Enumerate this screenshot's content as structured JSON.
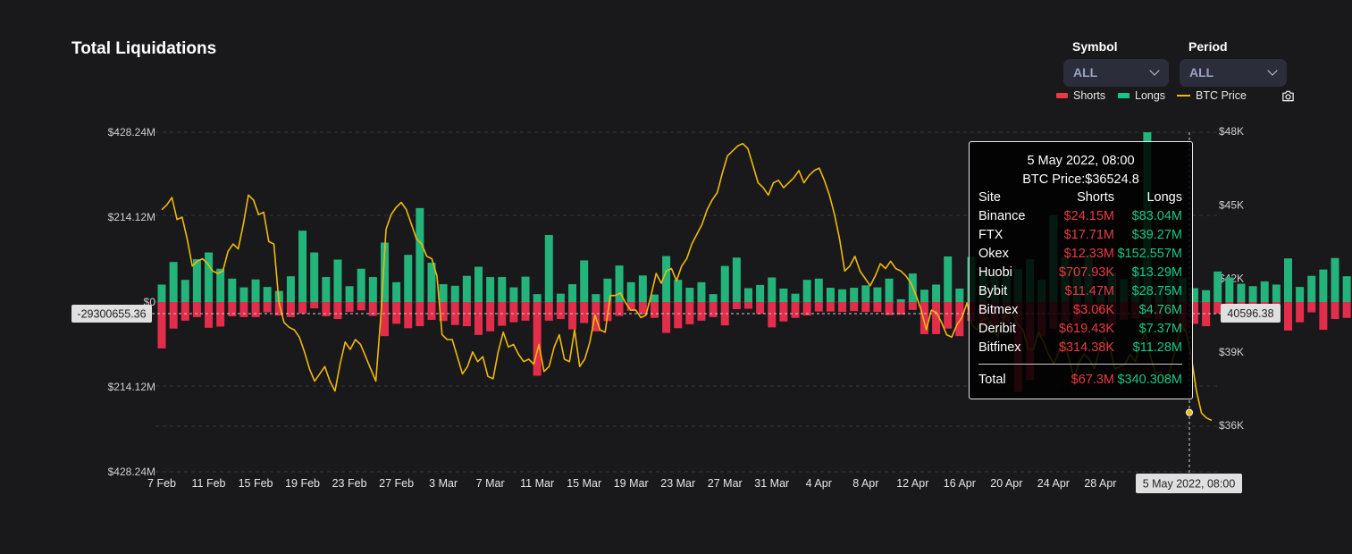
{
  "header": {
    "title": "Total Liquidations"
  },
  "controls": {
    "symbol": {
      "label": "Symbol",
      "value": "ALL"
    },
    "period": {
      "label": "Period",
      "value": "ALL"
    }
  },
  "legend": {
    "shorts": "Shorts",
    "longs": "Longs",
    "btc": "BTC Price"
  },
  "colors": {
    "shorts": "#ea3943",
    "longs": "#16c784",
    "btc": "#f0b90b",
    "background": "#19191b"
  },
  "icons": {
    "camera": "camera-icon",
    "chevron": "chevron-down-icon"
  },
  "crosshair": {
    "left_label": "-29300655.36",
    "right_label": "40596.38",
    "x_label": "5 May 2022, 08:00"
  },
  "tooltip": {
    "date": "5 May 2022, 08:00",
    "price": "BTC Price:$36524.8",
    "headers": {
      "site": "Site",
      "shorts": "Shorts",
      "longs": "Longs"
    },
    "rows": [
      {
        "site": "Binance",
        "shorts": "$24.15M",
        "longs": "$83.04M"
      },
      {
        "site": "FTX",
        "shorts": "$17.71M",
        "longs": "$39.27M"
      },
      {
        "site": "Okex",
        "shorts": "$12.33M",
        "longs": "$152.557M"
      },
      {
        "site": "Huobi",
        "shorts": "$707.93K",
        "longs": "$13.29M"
      },
      {
        "site": "Bybit",
        "shorts": "$11.47M",
        "longs": "$28.75M"
      },
      {
        "site": "Bitmex",
        "shorts": "$3.06K",
        "longs": "$4.76M"
      },
      {
        "site": "Deribit",
        "shorts": "$619.43K",
        "longs": "$7.37M"
      },
      {
        "site": "Bitfinex",
        "shorts": "$314.38K",
        "longs": "$11.28M"
      }
    ],
    "total": {
      "label": "Total",
      "shorts": "$67.3M",
      "longs": "$340.308M"
    }
  },
  "chart_data": {
    "type": "bar",
    "x_tick_labels": [
      "7 Feb",
      "11 Feb",
      "15 Feb",
      "19 Feb",
      "23 Feb",
      "27 Feb",
      "3 Mar",
      "7 Mar",
      "11 Mar",
      "15 Mar",
      "19 Mar",
      "23 Mar",
      "27 Mar",
      "31 Mar",
      "4 Apr",
      "8 Apr",
      "12 Apr",
      "16 Apr",
      "20 Apr",
      "24 Apr",
      "28 Apr"
    ],
    "y_left_ticks": [
      "$428.24M",
      "$214.12M",
      "$0",
      "$214.12M",
      "$428.24M"
    ],
    "y_left_range_millions": [
      -428.24,
      428.24
    ],
    "y_right_ticks": [
      "$48K",
      "$45K",
      "$42K",
      "$39K",
      "$36K"
    ],
    "y_right_range": [
      34200,
      48000
    ],
    "grid": "horizontal dashed",
    "legend_position": "top-right",
    "series": [
      {
        "name": "Longs",
        "unit": "M USD",
        "values": [
          44,
          101,
          56,
          108,
          125,
          84,
          59,
          37,
          57,
          38,
          28,
          65,
          180,
          125,
          63,
          107,
          40,
          84,
          63,
          150,
          50,
          119,
          237,
          99,
          45,
          41,
          66,
          89,
          63,
          63,
          37,
          64,
          20,
          169,
          21,
          45,
          105,
          20,
          59,
          92,
          50,
          67,
          19,
          116,
          56,
          36,
          50,
          20,
          91,
          112,
          35,
          43,
          62,
          34,
          21,
          56,
          59,
          36,
          32,
          36,
          42,
          37,
          59,
          7,
          72,
          31,
          44,
          115,
          34,
          114,
          82,
          69,
          71,
          83,
          108,
          56,
          219,
          115,
          79,
          118,
          21,
          76,
          57,
          89,
          440,
          40,
          85,
          61,
          35,
          30,
          77,
          62,
          46,
          40,
          52,
          44,
          110,
          38,
          66,
          82,
          111,
          65,
          140,
          129,
          47,
          222,
          145,
          141,
          107,
          76,
          75,
          95
        ],
        "_comment": "daily long liquidations in $M, read from green bars (7 Feb onward)"
      },
      {
        "name": "Shorts",
        "unit": "M USD",
        "values": [
          117,
          67,
          47,
          38,
          65,
          62,
          36,
          38,
          38,
          26,
          34,
          38,
          29,
          16,
          36,
          43,
          25,
          21,
          35,
          86,
          55,
          66,
          61,
          45,
          48,
          58,
          61,
          83,
          74,
          60,
          51,
          47,
          186,
          47,
          43,
          69,
          53,
          74,
          48,
          35,
          22,
          31,
          40,
          78,
          66,
          56,
          47,
          38,
          59,
          18,
          17,
          30,
          64,
          49,
          40,
          34,
          24,
          24,
          25,
          23,
          25,
          25,
          33,
          32,
          20,
          81,
          81,
          67,
          86,
          48,
          62,
          66,
          53,
          227,
          197,
          87,
          67,
          48,
          57,
          30,
          33,
          58,
          45,
          42,
          41,
          43,
          34,
          75,
          55,
          61,
          29,
          38,
          45,
          49,
          27,
          31,
          72,
          51,
          26,
          70,
          43,
          40,
          27,
          31,
          35,
          32,
          25,
          38,
          21,
          20,
          35,
          45
        ],
        "_comment": "daily short liquidations in $M (plotted downward), read from red bars"
      },
      {
        "name": "BTC Price",
        "unit": "USD",
        "values": [
          44800,
          45000,
          45300,
          44400,
          44500,
          43600,
          42500,
          42700,
          42800,
          42600,
          42300,
          42200,
          42300,
          43100,
          43400,
          43200,
          44200,
          45400,
          45200,
          44600,
          44700,
          43500,
          43400,
          41000,
          40200,
          40000,
          39900,
          39600,
          39000,
          38300,
          37800,
          38100,
          38400,
          37800,
          37400,
          38500,
          39400,
          39100,
          39500,
          39300,
          38800,
          38300,
          37800,
          40500,
          44000,
          44600,
          44900,
          45100,
          44800,
          44200,
          43600,
          43400,
          42900,
          42800,
          42100,
          39700,
          39500,
          39500,
          38800,
          38100,
          38400,
          39000,
          38600,
          38800,
          38000,
          37900,
          39000,
          39800,
          39200,
          39300,
          38900,
          38600,
          38700,
          38500,
          39300,
          38200,
          38400,
          39200,
          39700,
          38700,
          38600,
          39900,
          38400,
          38700,
          39400,
          40500,
          39900,
          39800,
          41300,
          41300,
          41400,
          41000,
          40700,
          40700,
          40400,
          40500,
          41300,
          42200,
          41800,
          42300,
          42400,
          41900,
          42500,
          42800,
          43400,
          43800,
          44200,
          44800,
          45200,
          45500,
          46300,
          47000,
          47200,
          47400,
          47500,
          47300,
          46600,
          45900,
          45700,
          45400,
          45900,
          46000,
          45700,
          45900,
          46100,
          46400,
          45900,
          46200,
          46400,
          46500,
          46000,
          45400,
          44600,
          43600,
          42300,
          42500,
          42900,
          42300,
          42000,
          41700,
          42100,
          42600,
          42400,
          42700,
          42400,
          42300,
          42100,
          41800,
          41300,
          40700,
          39900,
          40700,
          40600,
          40200,
          39700,
          39600,
          40100,
          40400,
          41000,
          40100,
          39900,
          40300,
          40400,
          40000,
          39600,
          40300,
          40700,
          40500,
          40100,
          39900,
          39100,
          39100,
          39800,
          39400,
          38900,
          38500,
          39000,
          39500,
          38700,
          37900,
          38600,
          38900,
          38700,
          38300,
          39100,
          39600,
          39200,
          38300,
          38400,
          38500,
          38900,
          38600,
          39300,
          39800,
          38800,
          38100,
          38200,
          37800,
          38400,
          39200,
          40100,
          39800,
          38800,
          37400,
          36500,
          36300,
          36200
        ],
        "_comment": "BTC price sampled twice per day (approx.)"
      }
    ]
  }
}
